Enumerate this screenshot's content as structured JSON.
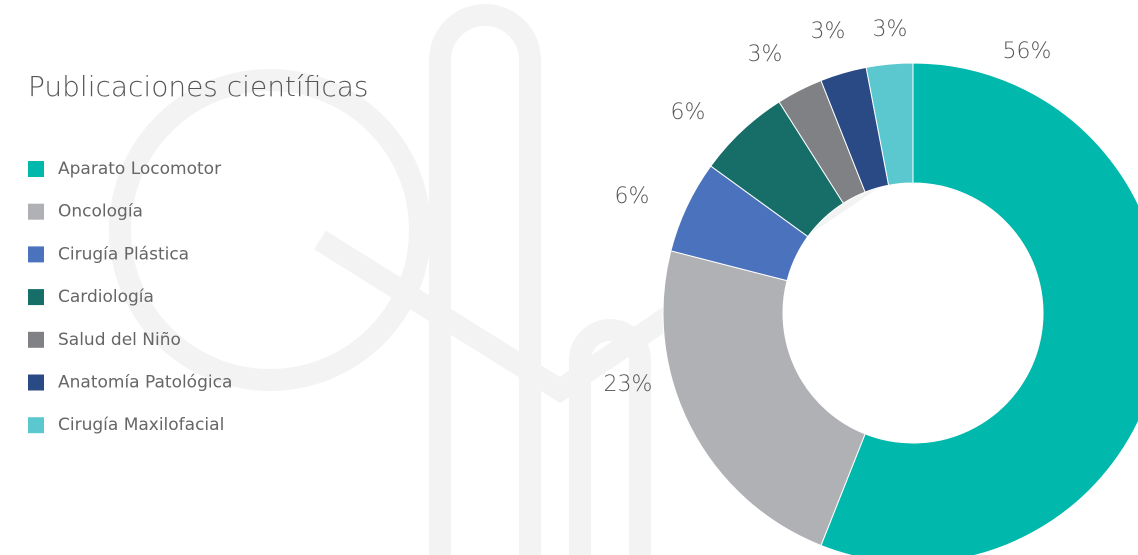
{
  "chart_data": {
    "type": "donut",
    "title": "Publicaciones científicas",
    "categories": [
      "Aparato Locomotor",
      "Oncología",
      "Cirugía Plástica",
      "Cardiología",
      "Salud del Niño",
      "Anatomía Patológica",
      "Cirugía Maxilofacial"
    ],
    "values": [
      56,
      23,
      6,
      6,
      3,
      3,
      3
    ],
    "value_labels": [
      "56%",
      "23%",
      "6%",
      "6%",
      "3%",
      "3%",
      "3%"
    ],
    "colors": [
      "#00b8ac",
      "#b0b1b4",
      "#4a72bd",
      "#176e69",
      "#808184",
      "#2a4a85",
      "#5bc8cf"
    ]
  }
}
